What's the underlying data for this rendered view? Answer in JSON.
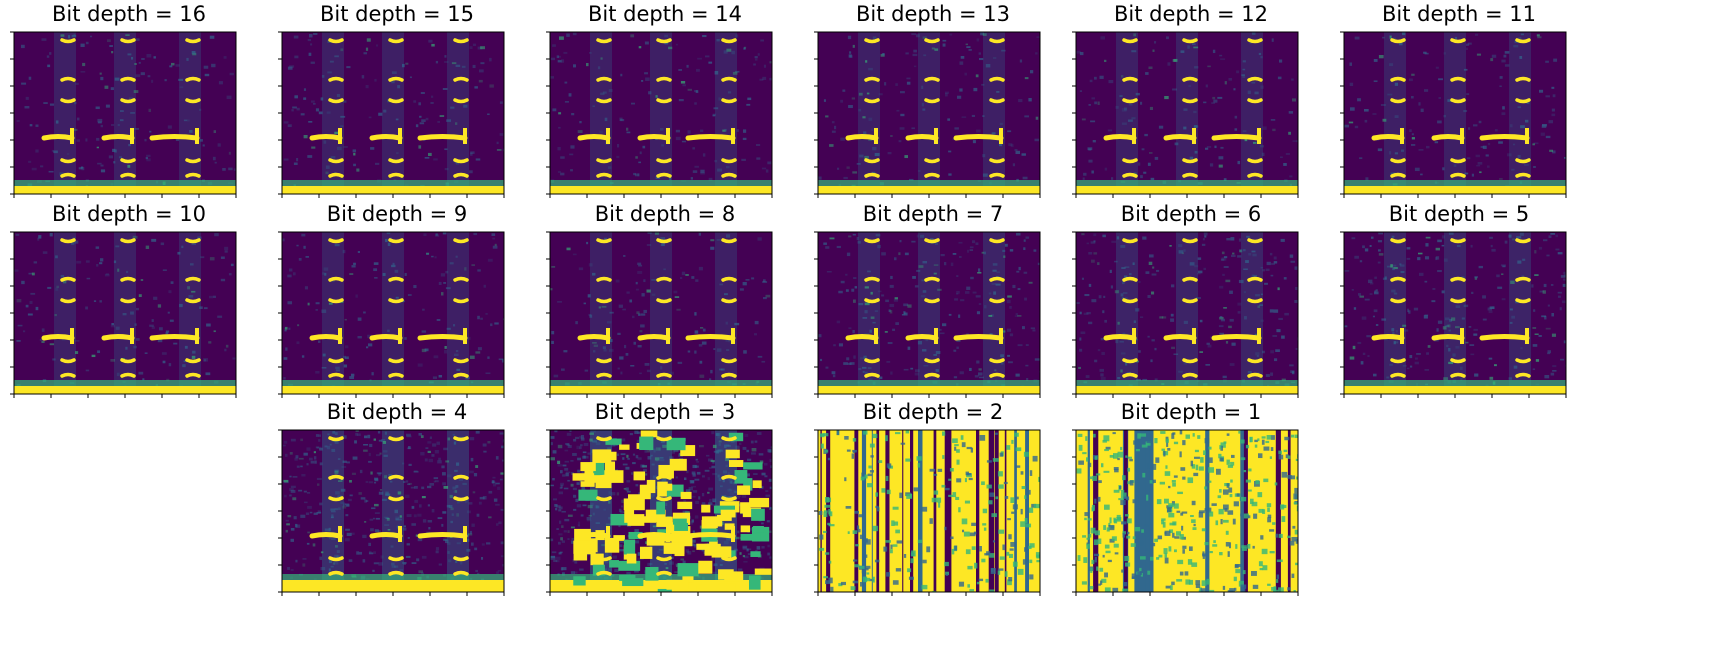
{
  "chart_data": {
    "type": "heatmap",
    "panels": [
      {
        "title": "Bit depth = 16",
        "bit_depth": 16
      },
      {
        "title": "Bit depth = 15",
        "bit_depth": 15
      },
      {
        "title": "Bit depth = 14",
        "bit_depth": 14
      },
      {
        "title": "Bit depth = 13",
        "bit_depth": 13
      },
      {
        "title": "Bit depth = 12",
        "bit_depth": 12
      },
      {
        "title": "Bit depth = 11",
        "bit_depth": 11
      },
      {
        "title": "Bit depth = 10",
        "bit_depth": 10
      },
      {
        "title": "Bit depth = 9",
        "bit_depth": 9
      },
      {
        "title": "Bit depth = 8",
        "bit_depth": 8
      },
      {
        "title": "Bit depth = 7",
        "bit_depth": 7
      },
      {
        "title": "Bit depth = 6",
        "bit_depth": 6
      },
      {
        "title": "Bit depth = 5",
        "bit_depth": 5
      },
      {
        "title": "Bit depth = 4",
        "bit_depth": 4
      },
      {
        "title": "Bit depth = 3",
        "bit_depth": 3
      },
      {
        "title": "Bit depth = 2",
        "bit_depth": 2
      },
      {
        "title": "Bit depth = 1",
        "bit_depth": 1
      }
    ],
    "colormap": [
      "#440154",
      "#31688e",
      "#35b779",
      "#fde725"
    ],
    "xlabel": "",
    "ylabel": "",
    "grid": false,
    "legend": "none"
  }
}
